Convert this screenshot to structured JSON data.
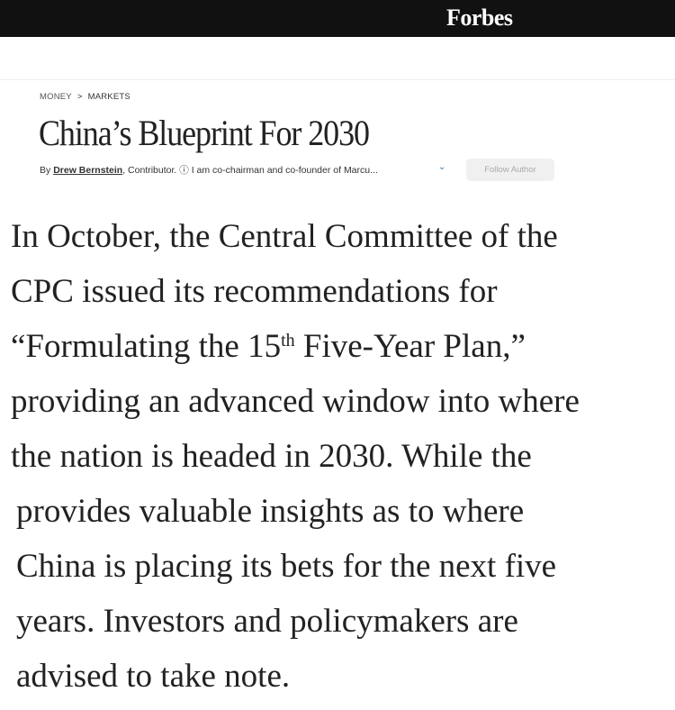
{
  "header": {
    "logo": "Forbes"
  },
  "breadcrumb": {
    "items": [
      "MONEY",
      "MARKETS"
    ],
    "separator": ">"
  },
  "article": {
    "title": "China’s Blueprint For 2030",
    "byline": {
      "by": "By",
      "author": "Drew Bernstein",
      "role": ", Contributor.",
      "info_icon": "info-icon",
      "bio": "I am co-chairman and co-founder of Marcu...",
      "expand_icon": "chevron-down-icon",
      "accent": "#2a7ab8"
    },
    "follow_label": "Follow Author",
    "lines": [
      "In October, the Central Committee of the",
      "CPC issued its recommendations for",
      {
        "pre": "“Formulating the 15",
        "sup": "th",
        "post": " Five-Year Plan,”"
      },
      "providing an advanced window into where",
      "the nation is headed in 2030. While the",
      "provides valuable insights as to where",
      "China is placing its bets for the next five",
      "years. Investors and policymakers are",
      "advised to take note."
    ]
  }
}
